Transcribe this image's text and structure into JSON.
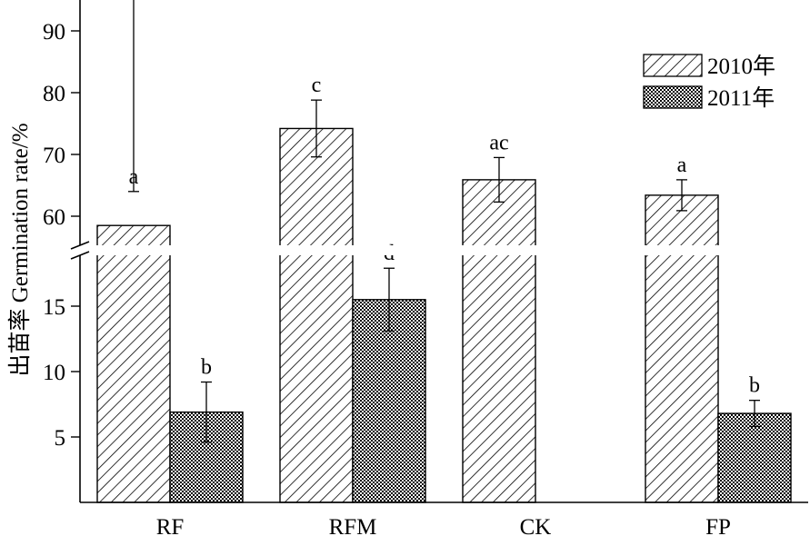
{
  "chart_data": {
    "type": "bar",
    "title": "",
    "xlabel": "",
    "ylabel": "出苗率 Germination rate/%",
    "categories": [
      "RF",
      "RFM",
      "CK",
      "FP"
    ],
    "series": [
      {
        "name": "2010年",
        "pattern": "diagonal-hatch",
        "values": [
          58.5,
          74.2,
          65.9,
          63.4
        ],
        "errors": [
          5.5,
          4.6,
          3.6,
          2.5
        ],
        "labels": [
          "a",
          "c",
          "ac",
          "a"
        ]
      },
      {
        "name": "2011年",
        "pattern": "crosshatch",
        "values": [
          6.9,
          15.5,
          null,
          6.8
        ],
        "errors": [
          2.3,
          2.4,
          null,
          1.0
        ],
        "labels": [
          "b",
          "d",
          "",
          "b"
        ]
      }
    ],
    "axis_break": true,
    "ylim_lower": [
      0,
      20
    ],
    "ylim_upper": [
      55,
      95
    ],
    "yticks_lower": [
      5,
      10,
      15
    ],
    "yticks_upper": [
      60,
      70,
      80,
      90
    ],
    "legend_position": "top-right",
    "grid": false
  }
}
